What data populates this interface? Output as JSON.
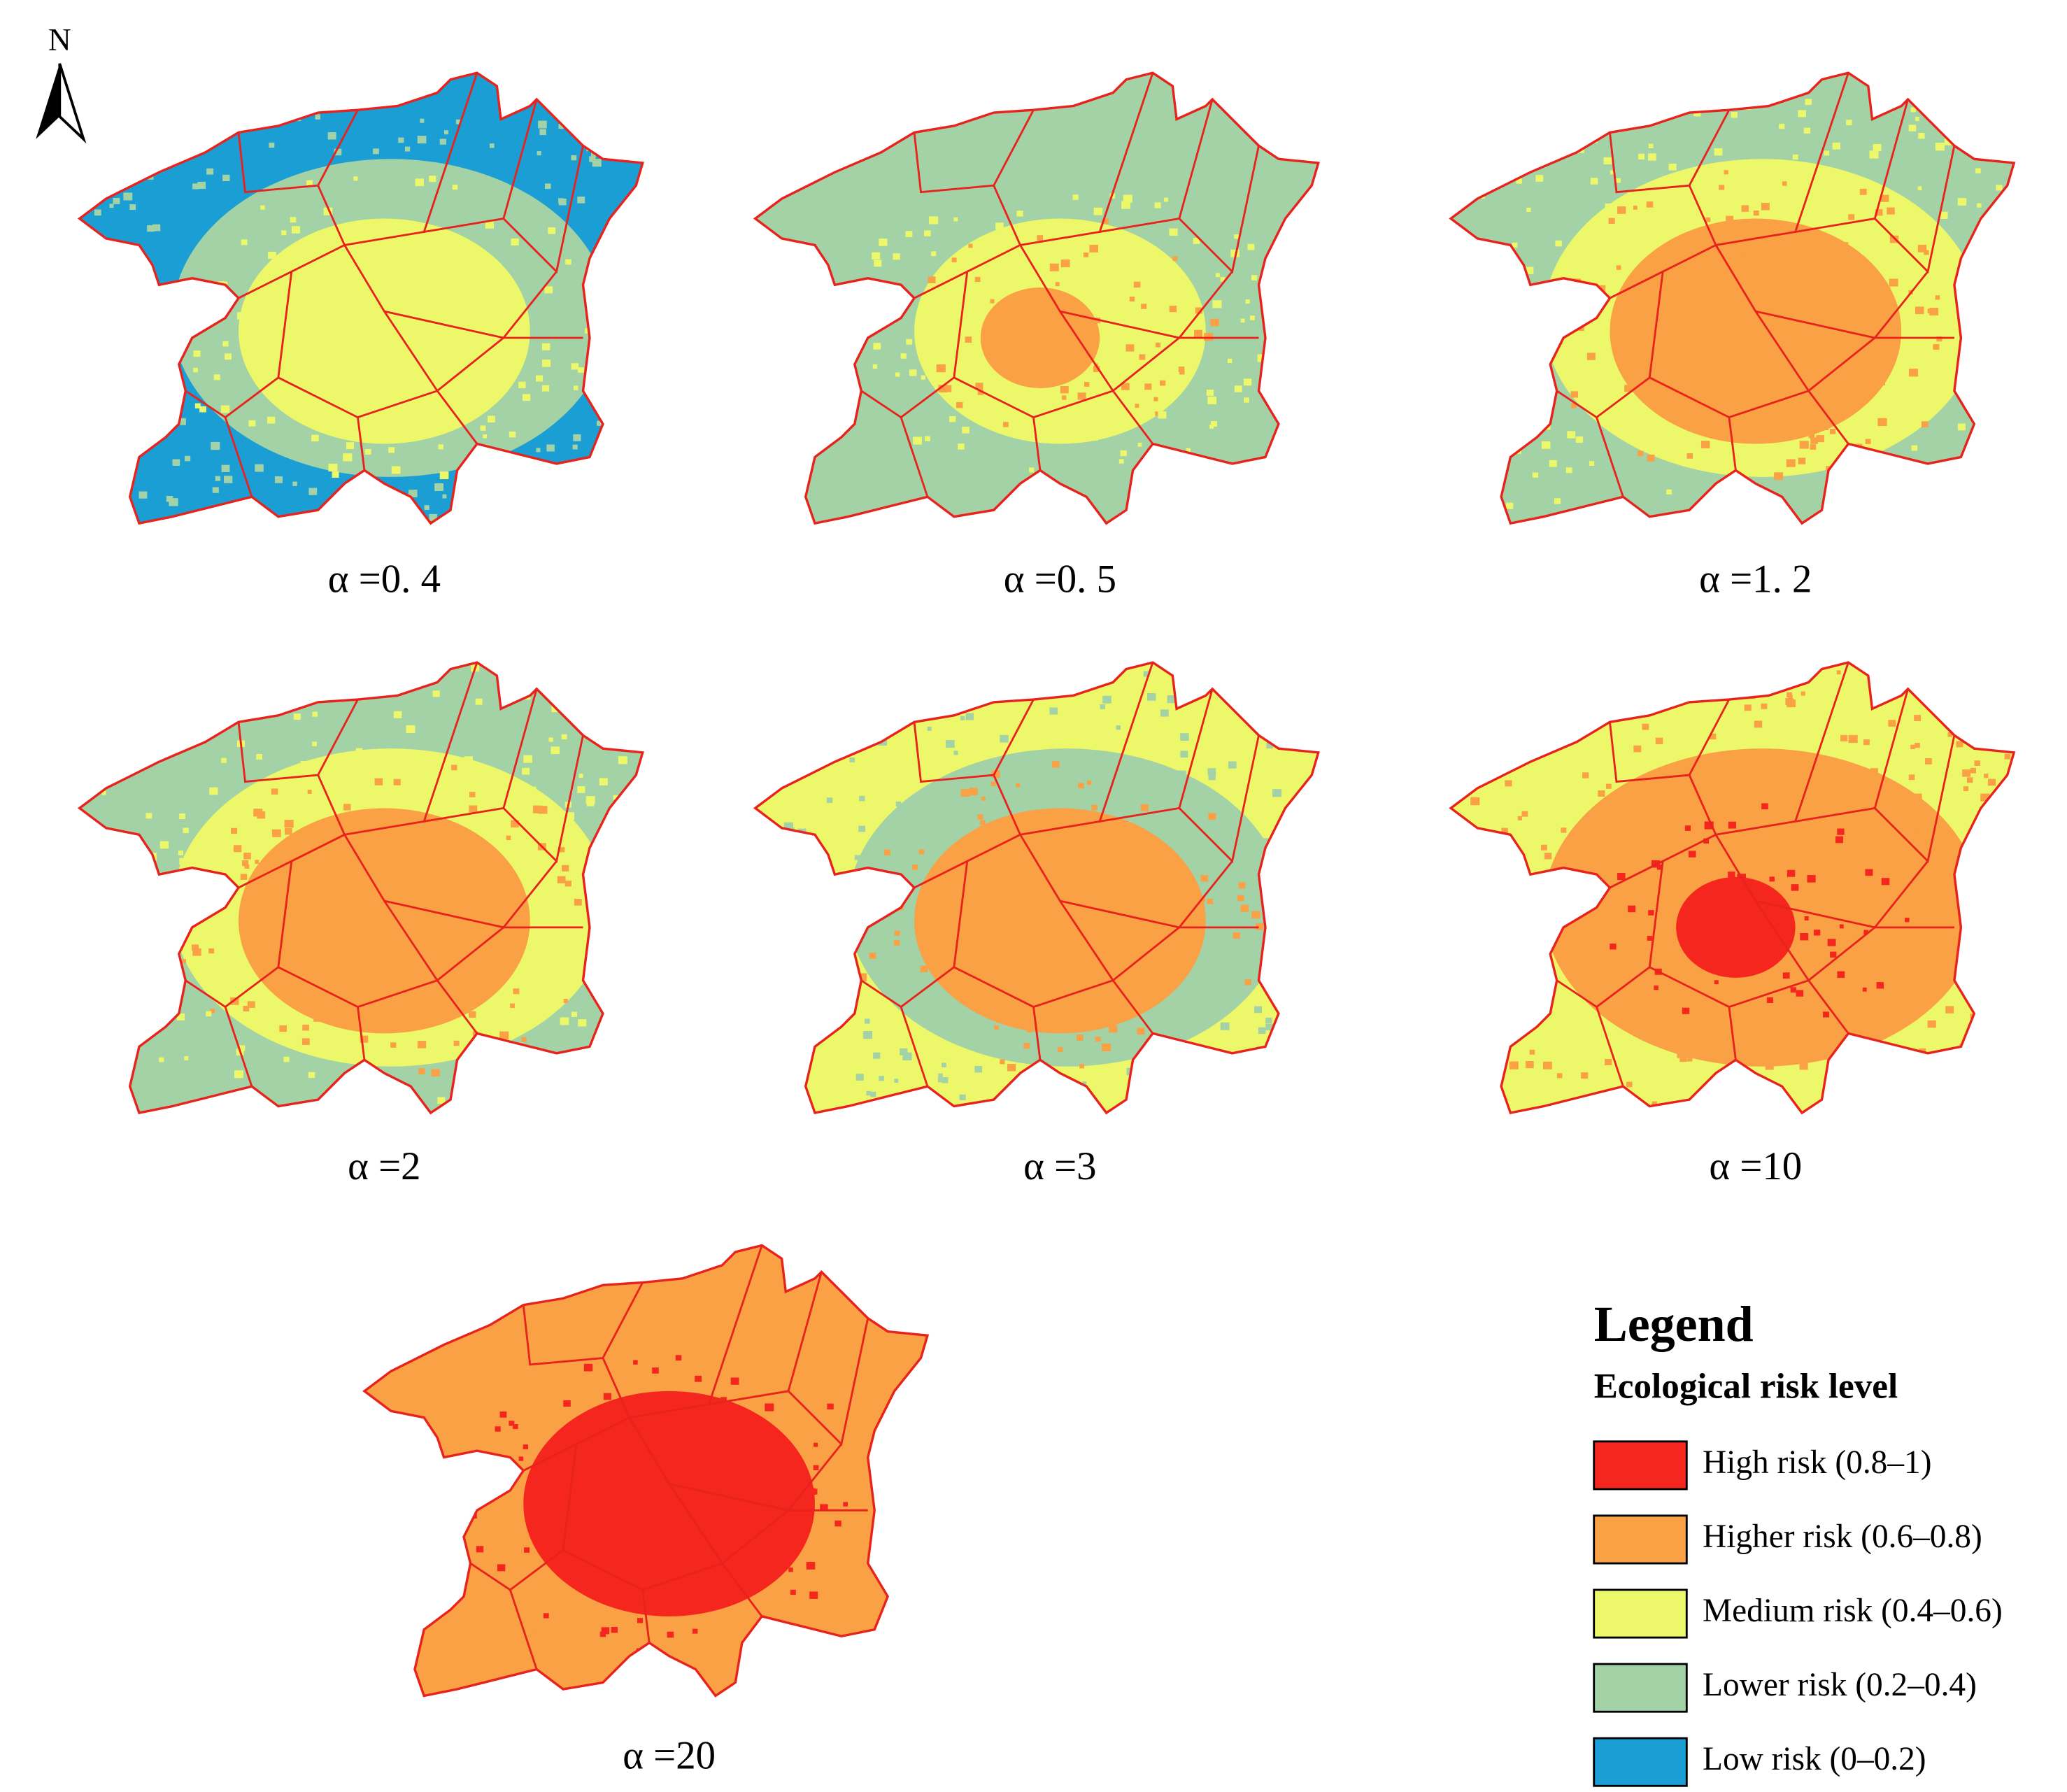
{
  "north_arrow": {
    "label": "N"
  },
  "maps": [
    {
      "label": "α =0. 4"
    },
    {
      "label": "α =0. 5"
    },
    {
      "label": "α =1. 2"
    },
    {
      "label": "α =2"
    },
    {
      "label": "α =3"
    },
    {
      "label": "α =10"
    },
    {
      "label": "α =20"
    }
  ],
  "legend": {
    "title": "Legend",
    "subtitle": "Ecological risk level",
    "items": [
      {
        "label": "High risk (0.8–1)",
        "color": "#f5261e"
      },
      {
        "label": "Higher risk (0.6–0.8)",
        "color": "#f9a144"
      },
      {
        "label": "Medium risk (0.4–0.6)",
        "color": "#ecf86a"
      },
      {
        "label": "Lower risk (0.2–0.4)",
        "color": "#a3d2a6"
      },
      {
        "label": "Low risk (0–0.2)",
        "color": "#1b9ed4"
      }
    ]
  }
}
